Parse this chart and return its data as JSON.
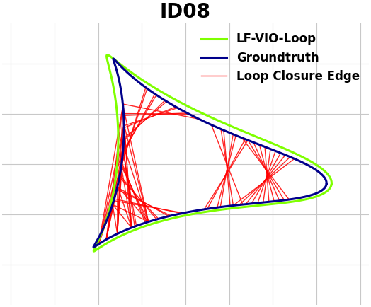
{
  "title": "ID08",
  "title_fontsize": 20,
  "title_fontweight": "bold",
  "background_color": "#ffffff",
  "grid_color": "#c8c8c8",
  "legend_entries": [
    "LF-VIO-Loop",
    "Groundtruth",
    "Loop Closure Edge"
  ],
  "legend_colors": [
    "#7fff00",
    "#00008b",
    "#ff0000"
  ],
  "legend_fontsize": 12,
  "lw_green": 2.2,
  "lw_blue": 2.2,
  "lw_red": 1.0,
  "xlim": [
    -4.2,
    4.2
  ],
  "ylim": [
    -2.8,
    2.8
  ]
}
